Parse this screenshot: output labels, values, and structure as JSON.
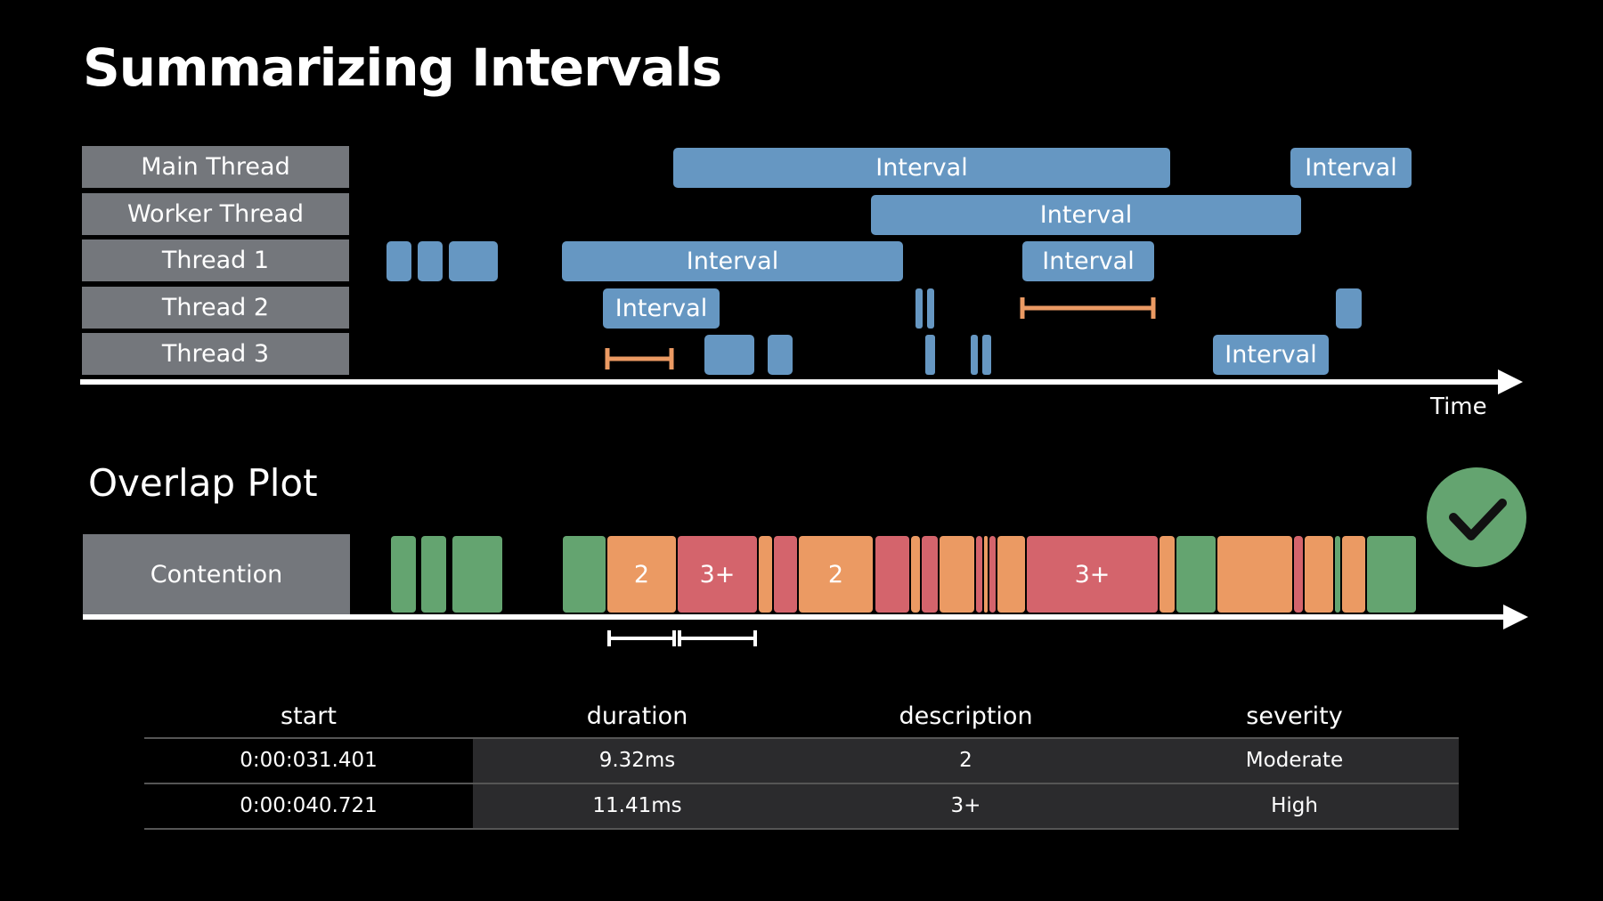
{
  "title": "Summarizing Intervals",
  "lanes": [
    "Main Thread",
    "Worker Thread",
    "Thread 1",
    "Thread 2",
    "Thread 3"
  ],
  "interval_label": "Interval",
  "axis_label": "Time",
  "overlap": {
    "title": "Overlap Plot",
    "lane_label": "Contention",
    "labels": {
      "two": "2",
      "three_plus": "3+"
    }
  },
  "colors": {
    "interval": "#6697c2",
    "green": "#64a470",
    "orange": "#eb9a63",
    "red": "#d4646c",
    "lane": "#74777c"
  },
  "icons": {
    "check": "check-icon"
  },
  "table": {
    "columns": [
      "start",
      "duration",
      "description",
      "severity"
    ],
    "rows": [
      [
        "0:00:031.401",
        "9.32ms",
        "2",
        "Moderate"
      ],
      [
        "0:00:040.721",
        "11.41ms",
        "3+",
        "High"
      ]
    ]
  }
}
